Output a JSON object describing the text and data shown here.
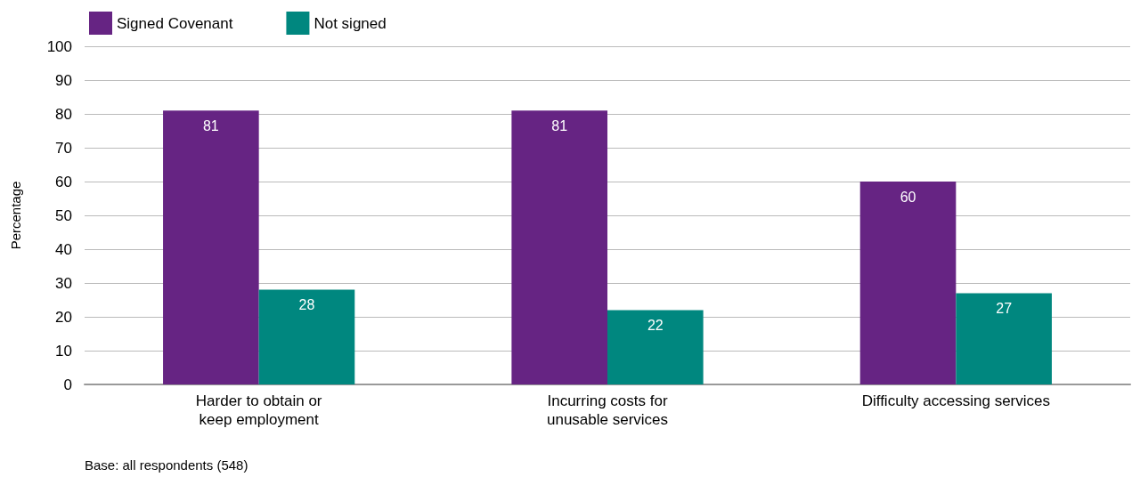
{
  "chart_data": {
    "type": "bar",
    "ylabel": "Percentage",
    "categories": [
      "Harder to obtain or\nkeep employment",
      "Incurring costs for\nunusable services",
      "Difficulty accessing services"
    ],
    "series": [
      {
        "name": "Signed Covenant",
        "color": "#662483",
        "values": [
          81,
          81,
          60
        ]
      },
      {
        "name": "Not signed",
        "color": "#00877f",
        "values": [
          28,
          22,
          27
        ]
      }
    ],
    "ylim": [
      0,
      100
    ],
    "yticks": [
      0,
      10,
      20,
      30,
      40,
      50,
      60,
      70,
      80,
      90,
      100
    ],
    "grid": "y",
    "legend": "top left",
    "data_labels": true,
    "annotations": [
      "Base: all respondents (548)"
    ]
  }
}
